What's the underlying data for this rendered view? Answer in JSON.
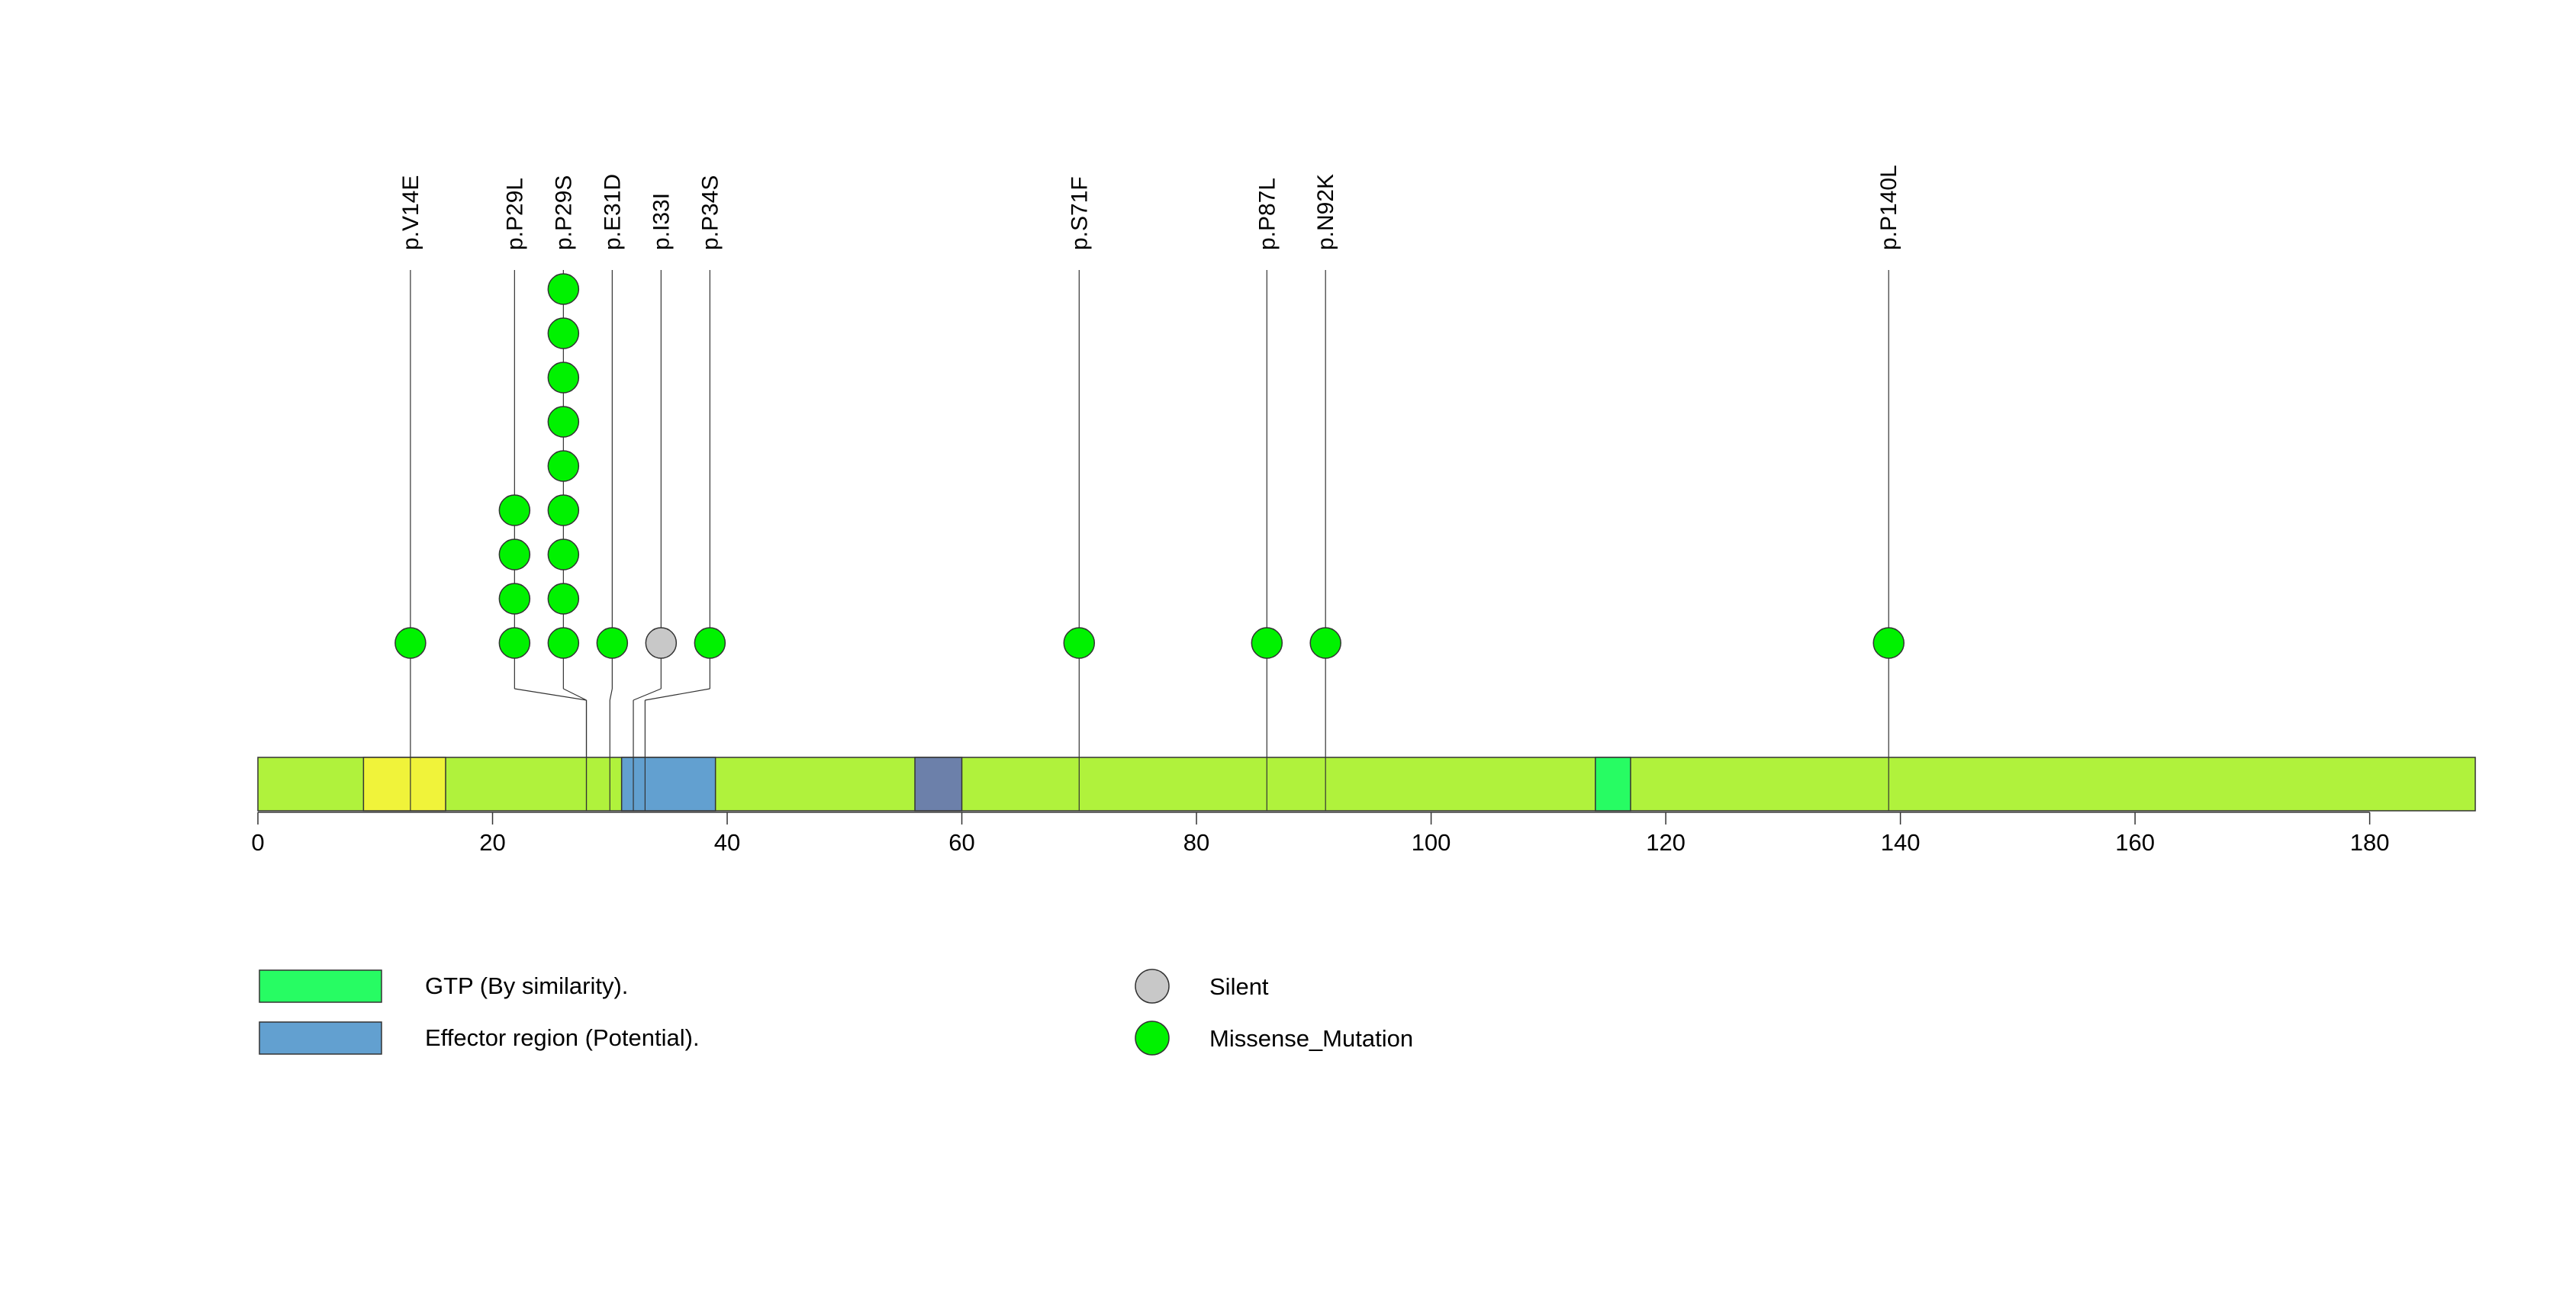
{
  "chart_data": {
    "type": "lollipop",
    "protein_length": 189,
    "xticks": [
      0,
      20,
      40,
      60,
      80,
      100,
      120,
      140,
      160,
      180
    ],
    "backbone_color": "#b0f23c",
    "domains": [
      {
        "start": 9,
        "end": 16,
        "color": "#f0f33a",
        "label": ""
      },
      {
        "start": 31,
        "end": 39,
        "color": "#62a0d0",
        "label": "Effector region (Potential)."
      },
      {
        "start": 56,
        "end": 60,
        "color": "#6c80aa",
        "label": ""
      },
      {
        "start": 114,
        "end": 117,
        "color": "#27fc63",
        "label": "GTP (By similarity)."
      }
    ],
    "mutations": [
      {
        "label": "p.V14E",
        "position": 13,
        "count": 1,
        "type": "Missense_Mutation"
      },
      {
        "label": "p.P29L",
        "position": 28,
        "count": 4,
        "type": "Missense_Mutation"
      },
      {
        "label": "p.P29S",
        "position": 28,
        "count": 9,
        "type": "Missense_Mutation"
      },
      {
        "label": "p.E31D",
        "position": 30,
        "count": 1,
        "type": "Missense_Mutation"
      },
      {
        "label": "p.I33I",
        "position": 32,
        "count": 1,
        "type": "Silent"
      },
      {
        "label": "p.P34S",
        "position": 33,
        "count": 1,
        "type": "Missense_Mutation"
      },
      {
        "label": "p.S71F",
        "position": 70,
        "count": 1,
        "type": "Missense_Mutation"
      },
      {
        "label": "p.P87L",
        "position": 86,
        "count": 1,
        "type": "Missense_Mutation"
      },
      {
        "label": "p.N92K",
        "position": 91,
        "count": 1,
        "type": "Missense_Mutation"
      },
      {
        "label": "p.P140L",
        "position": 139,
        "count": 1,
        "type": "Missense_Mutation"
      }
    ],
    "legend": {
      "domains": [
        {
          "label": "GTP (By similarity).",
          "color": "#27fc63"
        },
        {
          "label": "Effector region (Potential).",
          "color": "#62a0d0"
        }
      ],
      "mutation_types": [
        {
          "label": "Silent",
          "color": "#c8c8c8"
        },
        {
          "label": "Missense_Mutation",
          "color": "#00f200"
        }
      ]
    }
  }
}
